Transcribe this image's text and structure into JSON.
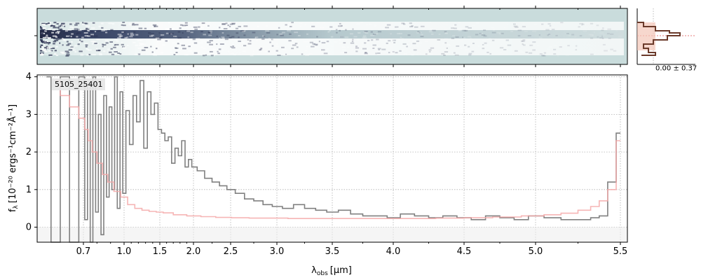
{
  "chart_data": {
    "type": "line",
    "annotation": "5105_25401",
    "xlabel_main": "λ",
    "xlabel_sub": "obs",
    "xlabel_unit": "[μm]",
    "ylabel_main": "f",
    "ylabel_sub": "λ",
    "ylabel_unit": "[10⁻²⁰ ergs⁻¹cm⁻²Å⁻¹]",
    "xlim": [
      0.6,
      5.55
    ],
    "ylim": [
      -0.4,
      4.05
    ],
    "x_ticks": [
      {
        "label": "0.7",
        "u": 0.7
      },
      {
        "label": "1.0",
        "u": 1.0
      },
      {
        "label": "1.5",
        "u": 1.5
      },
      {
        "label": "2.0",
        "u": 2.0
      },
      {
        "label": "2.5",
        "u": 2.5
      },
      {
        "label": "3.0",
        "u": 3.0
      },
      {
        "label": "3.5",
        "u": 3.5
      },
      {
        "label": "4.0",
        "u": 4.0
      },
      {
        "label": "4.5",
        "u": 4.5
      },
      {
        "label": "5.0",
        "u": 5.0
      },
      {
        "label": "5.5",
        "u": 5.5
      }
    ],
    "y_ticks": [
      0,
      1,
      2,
      3,
      4
    ],
    "grid": true,
    "series": [
      {
        "role": "flux",
        "color": "#808080",
        "x": [
          0.62,
          0.64,
          0.66,
          0.68,
          0.7,
          0.72,
          0.74,
          0.76,
          0.78,
          0.8,
          0.82,
          0.84,
          0.86,
          0.88,
          0.9,
          0.92,
          0.94,
          0.96,
          0.98,
          1.0,
          1.05,
          1.1,
          1.15,
          1.2,
          1.25,
          1.3,
          1.35,
          1.4,
          1.45,
          1.5,
          1.55,
          1.6,
          1.65,
          1.7,
          1.75,
          1.8,
          1.85,
          1.9,
          1.95,
          2.0,
          2.1,
          2.2,
          2.3,
          2.4,
          2.5,
          2.6,
          2.7,
          2.8,
          2.9,
          3.0,
          3.1,
          3.2,
          3.3,
          3.4,
          3.5,
          3.6,
          3.7,
          3.8,
          3.9,
          4.0,
          4.1,
          4.2,
          4.3,
          4.4,
          4.5,
          4.6,
          4.7,
          4.8,
          4.9,
          5.0,
          5.1,
          5.2,
          5.3,
          5.35,
          5.4,
          5.45,
          5.5
        ],
        "y": [
          4.0,
          -0.4,
          4.0,
          -0.4,
          4.0,
          0.2,
          3.8,
          -0.4,
          4.0,
          0.4,
          3.0,
          -0.2,
          3.5,
          0.8,
          3.2,
          1.0,
          4.0,
          0.5,
          3.6,
          0.9,
          3.1,
          2.2,
          3.5,
          2.8,
          3.9,
          2.1,
          3.6,
          3.0,
          3.3,
          2.6,
          2.5,
          2.3,
          2.4,
          1.7,
          2.1,
          1.9,
          2.3,
          1.6,
          1.8,
          1.6,
          1.5,
          1.3,
          1.2,
          1.1,
          1.0,
          0.9,
          0.75,
          0.7,
          0.6,
          0.55,
          0.5,
          0.6,
          0.5,
          0.45,
          0.4,
          0.45,
          0.35,
          0.3,
          0.3,
          0.25,
          0.35,
          0.3,
          0.25,
          0.3,
          0.25,
          0.2,
          0.3,
          0.25,
          0.2,
          0.3,
          0.25,
          0.2,
          0.2,
          0.25,
          0.3,
          1.2,
          2.5
        ]
      },
      {
        "role": "error",
        "color": "#f4a8a8",
        "x": [
          0.64,
          0.66,
          0.68,
          0.7,
          0.72,
          0.75,
          0.78,
          0.82,
          0.86,
          0.9,
          0.95,
          1.0,
          1.1,
          1.2,
          1.3,
          1.4,
          1.5,
          1.6,
          1.8,
          2.0,
          2.2,
          2.4,
          2.6,
          2.8,
          3.0,
          3.2,
          3.4,
          3.6,
          3.8,
          4.0,
          4.2,
          4.4,
          4.6,
          4.8,
          5.0,
          5.1,
          5.2,
          5.3,
          5.35,
          5.4,
          5.45,
          5.5
        ],
        "y": [
          3.9,
          3.5,
          3.2,
          2.9,
          2.6,
          2.3,
          2.0,
          1.7,
          1.4,
          1.2,
          0.95,
          0.8,
          0.6,
          0.5,
          0.45,
          0.42,
          0.4,
          0.38,
          0.33,
          0.3,
          0.28,
          0.26,
          0.25,
          0.24,
          0.24,
          0.23,
          0.23,
          0.23,
          0.23,
          0.23,
          0.23,
          0.24,
          0.25,
          0.27,
          0.3,
          0.33,
          0.37,
          0.45,
          0.55,
          0.7,
          1.0,
          2.3
        ]
      }
    ],
    "histogram": {
      "label": "0.00 ± 0.37"
    }
  }
}
